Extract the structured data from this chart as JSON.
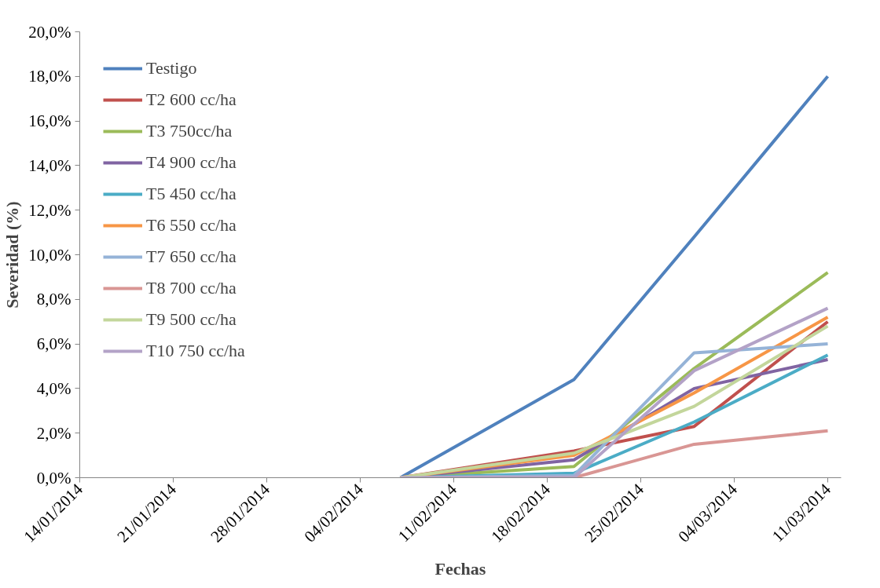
{
  "chart_data": {
    "type": "line",
    "xlabel": "Fechas",
    "ylabel": "Severidad (%)",
    "x": [
      "2014-02-07",
      "2014-02-20",
      "2014-03-01",
      "2014-03-11"
    ],
    "xlim": [
      "2014-01-14",
      "2014-03-12"
    ],
    "xticks": [
      {
        "value": "2014-01-14",
        "label": "14/01/2014"
      },
      {
        "value": "2014-01-21",
        "label": "21/01/2014"
      },
      {
        "value": "2014-01-28",
        "label": "28/01/2014"
      },
      {
        "value": "2014-02-04",
        "label": "04/02/2014"
      },
      {
        "value": "2014-02-11",
        "label": "11/02/2014"
      },
      {
        "value": "2014-02-18",
        "label": "18/02/2014"
      },
      {
        "value": "2014-02-25",
        "label": "25/02/2014"
      },
      {
        "value": "2014-03-04",
        "label": "04/03/2014"
      },
      {
        "value": "2014-03-11",
        "label": "11/03/2014"
      }
    ],
    "ylim": [
      0,
      20
    ],
    "yticks": [
      {
        "value": 0,
        "label": "0,0%"
      },
      {
        "value": 2,
        "label": "2,0%"
      },
      {
        "value": 4,
        "label": "4,0%"
      },
      {
        "value": 6,
        "label": "6,0%"
      },
      {
        "value": 8,
        "label": "8,0%"
      },
      {
        "value": 10,
        "label": "10,0%"
      },
      {
        "value": 12,
        "label": "12,0%"
      },
      {
        "value": 14,
        "label": "14,0%"
      },
      {
        "value": 16,
        "label": "16,0%"
      },
      {
        "value": 18,
        "label": "18,0%"
      },
      {
        "value": 20,
        "label": "20,0%"
      }
    ],
    "grid": false,
    "legend": "top left",
    "marker": "none",
    "line_style": "solid",
    "series": [
      {
        "name": "Testigo",
        "color": "#4f81bd",
        "values": [
          0,
          4.4,
          10.8,
          18.0
        ]
      },
      {
        "name": "T2 600 cc/ha",
        "color": "#c0504d",
        "values": [
          0,
          1.2,
          2.3,
          7.0
        ]
      },
      {
        "name": "T3 750cc/ha",
        "color": "#9bbb59",
        "values": [
          0,
          0.5,
          4.9,
          9.2
        ]
      },
      {
        "name": "T4 900 cc/ha",
        "color": "#8064a2",
        "values": [
          0,
          0.8,
          4.0,
          5.3
        ]
      },
      {
        "name": "T5 450 cc/ha",
        "color": "#4bacc6",
        "values": [
          0,
          0.2,
          2.5,
          5.5
        ]
      },
      {
        "name": "T6 550 cc/ha",
        "color": "#f79646",
        "values": [
          0,
          1.0,
          3.8,
          7.2
        ]
      },
      {
        "name": "T7 650 cc/ha",
        "color": "#95b3d7",
        "values": [
          0,
          0.1,
          5.6,
          6.0
        ]
      },
      {
        "name": "T8 700 cc/ha",
        "color": "#d99694",
        "values": [
          0,
          0,
          1.5,
          2.1
        ]
      },
      {
        "name": "T9 500 cc/ha",
        "color": "#c3d69b",
        "values": [
          0,
          1.1,
          3.2,
          6.8
        ]
      },
      {
        "name": "T10 750 cc/ha",
        "color": "#b3a2c7",
        "values": [
          0,
          0,
          4.8,
          7.6
        ]
      }
    ]
  }
}
